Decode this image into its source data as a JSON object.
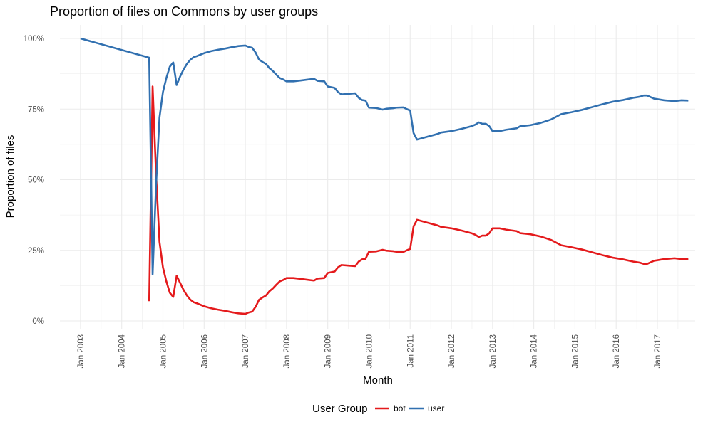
{
  "chart_data": {
    "type": "line",
    "title": "Proportion of files on Commons by user groups",
    "xlabel": "Month",
    "ylabel": "Proportion of files",
    "legend": {
      "title": "User Group",
      "position": "bottom"
    },
    "grid": true,
    "xlim": [
      "2002-07",
      "2017-12"
    ],
    "ylim": [
      0,
      1
    ],
    "x_ticks": [
      "2003-01",
      "2004-01",
      "2005-01",
      "2006-01",
      "2007-01",
      "2008-01",
      "2009-01",
      "2010-01",
      "2011-01",
      "2012-01",
      "2013-01",
      "2014-01",
      "2015-01",
      "2016-01",
      "2017-01"
    ],
    "x_tick_labels": [
      "Jan 2003",
      "Jan 2004",
      "Jan 2005",
      "Jan 2006",
      "Jan 2007",
      "Jan 2008",
      "Jan 2009",
      "Jan 2010",
      "Jan 2011",
      "Jan 2012",
      "Jan 2013",
      "Jan 2014",
      "Jan 2015",
      "Jan 2016",
      "Jan 2017"
    ],
    "y_ticks": [
      0,
      0.25,
      0.5,
      0.75,
      1
    ],
    "y_tick_labels": [
      "0%",
      "25%",
      "50%",
      "75%",
      "100%"
    ],
    "series": [
      {
        "name": "bot",
        "color": "#e41a1c",
        "points": [
          [
            "2004-09",
            0.07
          ],
          [
            "2004-10",
            0.83
          ],
          [
            "2004-11",
            0.52
          ],
          [
            "2004-12",
            0.28
          ],
          [
            "2005-01",
            0.19
          ],
          [
            "2005-02",
            0.14
          ],
          [
            "2005-03",
            0.1
          ],
          [
            "2005-04",
            0.085
          ],
          [
            "2005-05",
            0.16
          ],
          [
            "2005-06",
            0.135
          ],
          [
            "2005-07",
            0.11
          ],
          [
            "2005-08",
            0.09
          ],
          [
            "2005-09",
            0.075
          ],
          [
            "2005-10",
            0.066
          ],
          [
            "2005-11",
            0.062
          ],
          [
            "2005-12",
            0.057
          ],
          [
            "2006-01",
            0.052
          ],
          [
            "2006-03",
            0.045
          ],
          [
            "2006-05",
            0.04
          ],
          [
            "2006-07",
            0.036
          ],
          [
            "2006-09",
            0.031
          ],
          [
            "2006-11",
            0.027
          ],
          [
            "2007-01",
            0.025
          ],
          [
            "2007-02",
            0.03
          ],
          [
            "2007-03",
            0.033
          ],
          [
            "2007-04",
            0.05
          ],
          [
            "2007-05",
            0.075
          ],
          [
            "2007-06",
            0.083
          ],
          [
            "2007-07",
            0.09
          ],
          [
            "2007-08",
            0.105
          ],
          [
            "2007-09",
            0.115
          ],
          [
            "2007-10",
            0.128
          ],
          [
            "2007-11",
            0.14
          ],
          [
            "2007-12",
            0.145
          ],
          [
            "2008-01",
            0.152
          ],
          [
            "2008-03",
            0.152
          ],
          [
            "2008-05",
            0.149
          ],
          [
            "2008-07",
            0.146
          ],
          [
            "2008-09",
            0.143
          ],
          [
            "2008-10",
            0.15
          ],
          [
            "2008-12",
            0.152
          ],
          [
            "2009-01",
            0.17
          ],
          [
            "2009-03",
            0.175
          ],
          [
            "2009-04",
            0.19
          ],
          [
            "2009-05",
            0.198
          ],
          [
            "2009-07",
            0.196
          ],
          [
            "2009-09",
            0.194
          ],
          [
            "2009-10",
            0.21
          ],
          [
            "2009-11",
            0.218
          ],
          [
            "2009-12",
            0.22
          ],
          [
            "2010-01",
            0.245
          ],
          [
            "2010-03",
            0.246
          ],
          [
            "2010-05",
            0.252
          ],
          [
            "2010-06",
            0.249
          ],
          [
            "2010-08",
            0.247
          ],
          [
            "2010-09",
            0.245
          ],
          [
            "2010-11",
            0.244
          ],
          [
            "2010-12",
            0.25
          ],
          [
            "2011-01",
            0.255
          ],
          [
            "2011-02",
            0.335
          ],
          [
            "2011-03",
            0.358
          ],
          [
            "2011-06",
            0.348
          ],
          [
            "2011-09",
            0.338
          ],
          [
            "2011-10",
            0.333
          ],
          [
            "2012-01",
            0.328
          ],
          [
            "2012-04",
            0.32
          ],
          [
            "2012-07",
            0.31
          ],
          [
            "2012-08",
            0.305
          ],
          [
            "2012-09",
            0.297
          ],
          [
            "2012-10",
            0.302
          ],
          [
            "2012-11",
            0.302
          ],
          [
            "2012-12",
            0.31
          ],
          [
            "2013-01",
            0.328
          ],
          [
            "2013-03",
            0.328
          ],
          [
            "2013-05",
            0.323
          ],
          [
            "2013-08",
            0.318
          ],
          [
            "2013-09",
            0.311
          ],
          [
            "2013-12",
            0.307
          ],
          [
            "2014-03",
            0.299
          ],
          [
            "2014-06",
            0.287
          ],
          [
            "2014-09",
            0.268
          ],
          [
            "2014-12",
            0.261
          ],
          [
            "2015-03",
            0.253
          ],
          [
            "2015-06",
            0.243
          ],
          [
            "2015-09",
            0.233
          ],
          [
            "2015-12",
            0.224
          ],
          [
            "2016-03",
            0.218
          ],
          [
            "2016-06",
            0.21
          ],
          [
            "2016-08",
            0.206
          ],
          [
            "2016-09",
            0.202
          ],
          [
            "2016-10",
            0.202
          ],
          [
            "2016-12",
            0.213
          ],
          [
            "2017-03",
            0.219
          ],
          [
            "2017-06",
            0.222
          ],
          [
            "2017-08",
            0.219
          ],
          [
            "2017-10",
            0.22
          ]
        ]
      },
      {
        "name": "user",
        "color": "#3170b0",
        "points": [
          [
            "2003-01",
            1.0
          ],
          [
            "2004-09",
            0.932
          ],
          [
            "2004-10",
            0.165
          ],
          [
            "2004-11",
            0.48
          ],
          [
            "2004-12",
            0.72
          ],
          [
            "2005-01",
            0.81
          ],
          [
            "2005-02",
            0.86
          ],
          [
            "2005-03",
            0.9
          ],
          [
            "2005-04",
            0.915
          ],
          [
            "2005-05",
            0.835
          ],
          [
            "2005-06",
            0.865
          ],
          [
            "2005-07",
            0.89
          ],
          [
            "2005-08",
            0.91
          ],
          [
            "2005-09",
            0.925
          ],
          [
            "2005-10",
            0.934
          ],
          [
            "2005-11",
            0.938
          ],
          [
            "2005-12",
            0.943
          ],
          [
            "2006-01",
            0.948
          ],
          [
            "2006-03",
            0.955
          ],
          [
            "2006-05",
            0.96
          ],
          [
            "2006-07",
            0.964
          ],
          [
            "2006-09",
            0.969
          ],
          [
            "2006-11",
            0.973
          ],
          [
            "2007-01",
            0.975
          ],
          [
            "2007-02",
            0.97
          ],
          [
            "2007-03",
            0.967
          ],
          [
            "2007-04",
            0.95
          ],
          [
            "2007-05",
            0.925
          ],
          [
            "2007-06",
            0.917
          ],
          [
            "2007-07",
            0.91
          ],
          [
            "2007-08",
            0.895
          ],
          [
            "2007-09",
            0.885
          ],
          [
            "2007-10",
            0.872
          ],
          [
            "2007-11",
            0.86
          ],
          [
            "2007-12",
            0.855
          ],
          [
            "2008-01",
            0.848
          ],
          [
            "2008-03",
            0.848
          ],
          [
            "2008-05",
            0.851
          ],
          [
            "2008-07",
            0.854
          ],
          [
            "2008-09",
            0.857
          ],
          [
            "2008-10",
            0.85
          ],
          [
            "2008-12",
            0.848
          ],
          [
            "2009-01",
            0.83
          ],
          [
            "2009-03",
            0.825
          ],
          [
            "2009-04",
            0.81
          ],
          [
            "2009-05",
            0.802
          ],
          [
            "2009-07",
            0.804
          ],
          [
            "2009-09",
            0.806
          ],
          [
            "2009-10",
            0.79
          ],
          [
            "2009-11",
            0.782
          ],
          [
            "2009-12",
            0.78
          ],
          [
            "2010-01",
            0.755
          ],
          [
            "2010-03",
            0.754
          ],
          [
            "2010-05",
            0.748
          ],
          [
            "2010-06",
            0.751
          ],
          [
            "2010-08",
            0.753
          ],
          [
            "2010-09",
            0.755
          ],
          [
            "2010-11",
            0.756
          ],
          [
            "2010-12",
            0.75
          ],
          [
            "2011-01",
            0.745
          ],
          [
            "2011-02",
            0.665
          ],
          [
            "2011-03",
            0.642
          ],
          [
            "2011-06",
            0.652
          ],
          [
            "2011-09",
            0.662
          ],
          [
            "2011-10",
            0.667
          ],
          [
            "2012-01",
            0.672
          ],
          [
            "2012-04",
            0.68
          ],
          [
            "2012-07",
            0.69
          ],
          [
            "2012-08",
            0.695
          ],
          [
            "2012-09",
            0.703
          ],
          [
            "2012-10",
            0.698
          ],
          [
            "2012-11",
            0.698
          ],
          [
            "2012-12",
            0.69
          ],
          [
            "2013-01",
            0.672
          ],
          [
            "2013-03",
            0.672
          ],
          [
            "2013-05",
            0.677
          ],
          [
            "2013-08",
            0.682
          ],
          [
            "2013-09",
            0.689
          ],
          [
            "2013-12",
            0.693
          ],
          [
            "2014-03",
            0.701
          ],
          [
            "2014-06",
            0.713
          ],
          [
            "2014-09",
            0.732
          ],
          [
            "2014-12",
            0.739
          ],
          [
            "2015-03",
            0.747
          ],
          [
            "2015-06",
            0.757
          ],
          [
            "2015-09",
            0.767
          ],
          [
            "2015-12",
            0.776
          ],
          [
            "2016-03",
            0.782
          ],
          [
            "2016-06",
            0.79
          ],
          [
            "2016-08",
            0.794
          ],
          [
            "2016-09",
            0.798
          ],
          [
            "2016-10",
            0.798
          ],
          [
            "2016-12",
            0.787
          ],
          [
            "2017-03",
            0.781
          ],
          [
            "2017-06",
            0.778
          ],
          [
            "2017-08",
            0.781
          ],
          [
            "2017-10",
            0.78
          ]
        ]
      }
    ]
  }
}
